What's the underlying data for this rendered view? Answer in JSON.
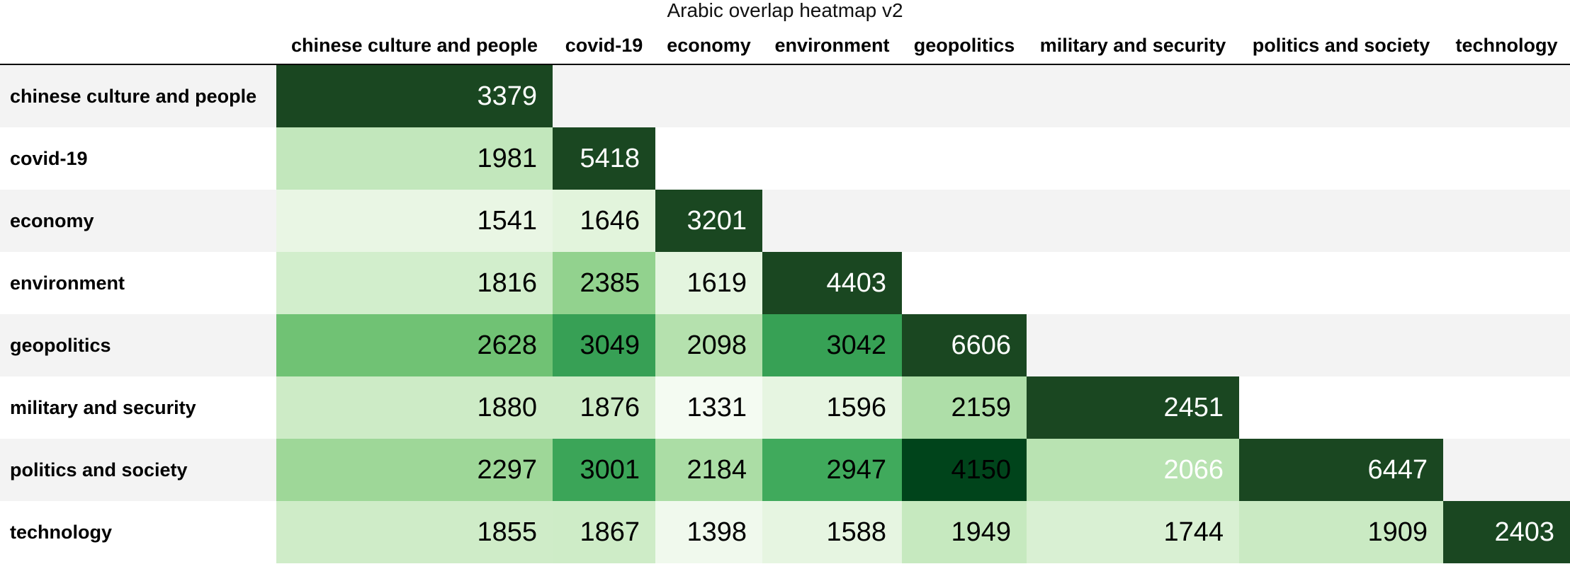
{
  "chart_data": {
    "type": "heatmap",
    "title": "Arabic overlap heatmap v2",
    "columns": [
      "chinese culture and people",
      "covid-19",
      "economy",
      "environment",
      "geopolitics",
      "military and security",
      "politics and society",
      "technology"
    ],
    "rows": [
      "chinese culture and people",
      "covid-19",
      "economy",
      "environment",
      "geopolitics",
      "military and security",
      "politics and society",
      "technology"
    ],
    "values": [
      [
        3379,
        null,
        null,
        null,
        null,
        null,
        null,
        null
      ],
      [
        1981,
        5418,
        null,
        null,
        null,
        null,
        null,
        null
      ],
      [
        1541,
        1646,
        3201,
        null,
        null,
        null,
        null,
        null
      ],
      [
        1816,
        2385,
        1619,
        4403,
        null,
        null,
        null,
        null
      ],
      [
        2628,
        3049,
        2098,
        3042,
        6606,
        null,
        null,
        null
      ],
      [
        1880,
        1876,
        1331,
        1596,
        2159,
        2451,
        null,
        null
      ],
      [
        2297,
        3001,
        2184,
        2947,
        4150,
        2066,
        6447,
        null
      ],
      [
        1855,
        1867,
        1398,
        1588,
        1949,
        1744,
        1909,
        2403
      ]
    ],
    "colormap": "Greens",
    "diagonal_color": "#1a4721",
    "light_text_color": "#ffffff",
    "dark_text_color": "#000000",
    "legend": "none"
  }
}
